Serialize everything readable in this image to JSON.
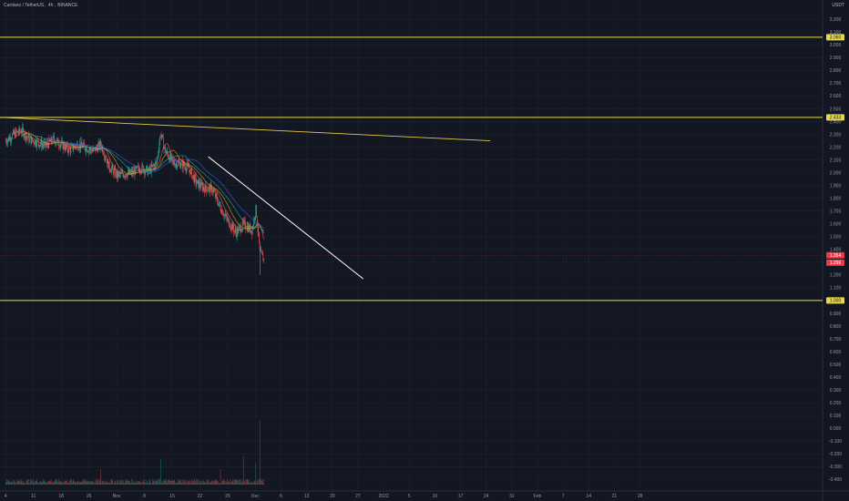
{
  "header": {
    "symbol": "Cardano / TetherUS",
    "interval": "4h",
    "exchange": "BINANCE"
  },
  "price_axis": {
    "unit": "USDT",
    "ticks": [
      "3.200",
      "3.100",
      "3.000",
      "2.900",
      "2.800",
      "2.700",
      "2.600",
      "2.500",
      "2.400",
      "2.300",
      "2.200",
      "2.100",
      "2.000",
      "1.900",
      "1.800",
      "1.700",
      "1.600",
      "1.500",
      "1.400",
      "1.300",
      "1.200",
      "1.100",
      "1.000",
      "0.900",
      "0.800",
      "0.700",
      "0.600",
      "0.500",
      "0.400",
      "0.300",
      "0.200",
      "0.100",
      "0.000",
      "-0.100",
      "-0.200",
      "-0.300",
      "-0.400"
    ],
    "tick_values": [
      3.2,
      3.1,
      3.0,
      2.9,
      2.8,
      2.7,
      2.6,
      2.5,
      2.4,
      2.3,
      2.2,
      2.1,
      2.0,
      1.9,
      1.8,
      1.7,
      1.6,
      1.5,
      1.4,
      1.3,
      1.2,
      1.1,
      1.0,
      0.9,
      0.8,
      0.7,
      0.6,
      0.5,
      0.4,
      0.3,
      0.2,
      0.1,
      0.0,
      -0.1,
      -0.2,
      -0.3,
      -0.4
    ],
    "labels": [
      {
        "text": "3.060",
        "value": 3.06,
        "color": "#e6d84c",
        "text_color": "#131722"
      },
      {
        "text": "2.433",
        "value": 2.433,
        "color": "#e6d84c",
        "text_color": "#131722"
      },
      {
        "text": "1.354",
        "value": 1.354,
        "color": "#f23645",
        "text_color": "#ffffff"
      },
      {
        "text": "1.296",
        "value": 1.296,
        "color": "#f23645",
        "text_color": "#ffffff"
      },
      {
        "text": "1.000",
        "value": 1.0,
        "color": "#e6d84c",
        "text_color": "#131722"
      }
    ]
  },
  "time_axis": {
    "ticks": [
      "4",
      "11",
      "18",
      "25",
      "Nov",
      "8",
      "15",
      "22",
      "29",
      "Dec",
      "6",
      "13",
      "20",
      "27",
      "2022",
      "5",
      "10",
      "17",
      "24",
      "31",
      "Feb",
      "7",
      "14",
      "21",
      "28"
    ]
  },
  "colors": {
    "background": "#131722",
    "grid": "#1e222d",
    "up": "#26a69a",
    "down": "#ef5350",
    "horizontal_levels": "#e6d84c",
    "downtrend": "#ffffff",
    "long_trend": "#e6c84c",
    "ma_fast": "#e06060",
    "ma_mid": "#d4a017",
    "ma_slow": "#26a69a",
    "ma_trend": "#3b5bdb"
  },
  "chart_data": {
    "type": "candlestick",
    "title": "Cardano / TetherUS, 4h, BINANCE",
    "ylim": [
      -0.44,
      3.28
    ],
    "horizontal_levels": [
      3.06,
      2.433,
      1.0
    ],
    "trendlines": [
      {
        "from": {
          "x": "Oct 1",
          "y": 2.433
        },
        "to": {
          "x": "Jan 31",
          "y": 2.25
        }
      },
      {
        "from": {
          "x": "Nov 21",
          "y": 2.125
        },
        "to": {
          "x": "Dec 30",
          "y": 1.17
        }
      }
    ],
    "price_path": [
      {
        "x": "Oct 1",
        "close": 2.25
      },
      {
        "x": "Oct 3",
        "close": 2.3
      },
      {
        "x": "Oct 5",
        "close": 2.33
      },
      {
        "x": "Oct 7",
        "close": 2.26
      },
      {
        "x": "Oct 9",
        "close": 2.24
      },
      {
        "x": "Oct 11",
        "close": 2.21
      },
      {
        "x": "Oct 13",
        "close": 2.26
      },
      {
        "x": "Oct 15",
        "close": 2.22
      },
      {
        "x": "Oct 17",
        "close": 2.18
      },
      {
        "x": "Oct 19",
        "close": 2.22
      },
      {
        "x": "Oct 21",
        "close": 2.2
      },
      {
        "x": "Oct 23",
        "close": 2.17
      },
      {
        "x": "Oct 25",
        "close": 2.22
      },
      {
        "x": "Oct 27",
        "close": 2.05
      },
      {
        "x": "Oct 29",
        "close": 1.98
      },
      {
        "x": "Oct 31",
        "close": 1.99
      },
      {
        "x": "Nov 2",
        "close": 2.0
      },
      {
        "x": "Nov 4",
        "close": 2.04
      },
      {
        "x": "Nov 6",
        "close": 2.01
      },
      {
        "x": "Nov 8",
        "close": 2.08
      },
      {
        "x": "Nov 9",
        "close": 2.31
      },
      {
        "x": "Nov 10",
        "close": 2.18
      },
      {
        "x": "Nov 12",
        "close": 2.08
      },
      {
        "x": "Nov 14",
        "close": 2.07
      },
      {
        "x": "Nov 16",
        "close": 2.04
      },
      {
        "x": "Nov 18",
        "close": 1.92
      },
      {
        "x": "Nov 20",
        "close": 1.88
      },
      {
        "x": "Nov 22",
        "close": 1.87
      },
      {
        "x": "Nov 24",
        "close": 1.73
      },
      {
        "x": "Nov 26",
        "close": 1.62
      },
      {
        "x": "Nov 28",
        "close": 1.53
      },
      {
        "x": "Nov 30",
        "close": 1.6
      },
      {
        "x": "Dec 1",
        "close": 1.57
      },
      {
        "x": "Dec 2",
        "close": 1.55
      },
      {
        "x": "Dec 3",
        "close": 1.72
      },
      {
        "x": "Dec 4",
        "close": 1.37
      },
      {
        "x": "Dec 5",
        "close": 1.32
      }
    ],
    "volume_path": [
      {
        "x": "Nov 9",
        "volume": 0.2
      },
      {
        "x": "Oct 25",
        "volume": 0.12
      },
      {
        "x": "Nov 24",
        "volume": 0.12
      },
      {
        "x": "Nov 30",
        "volume": 0.22
      },
      {
        "x": "Dec 3",
        "volume": 0.17
      },
      {
        "x": "Dec 4",
        "volume": 0.5
      }
    ]
  }
}
